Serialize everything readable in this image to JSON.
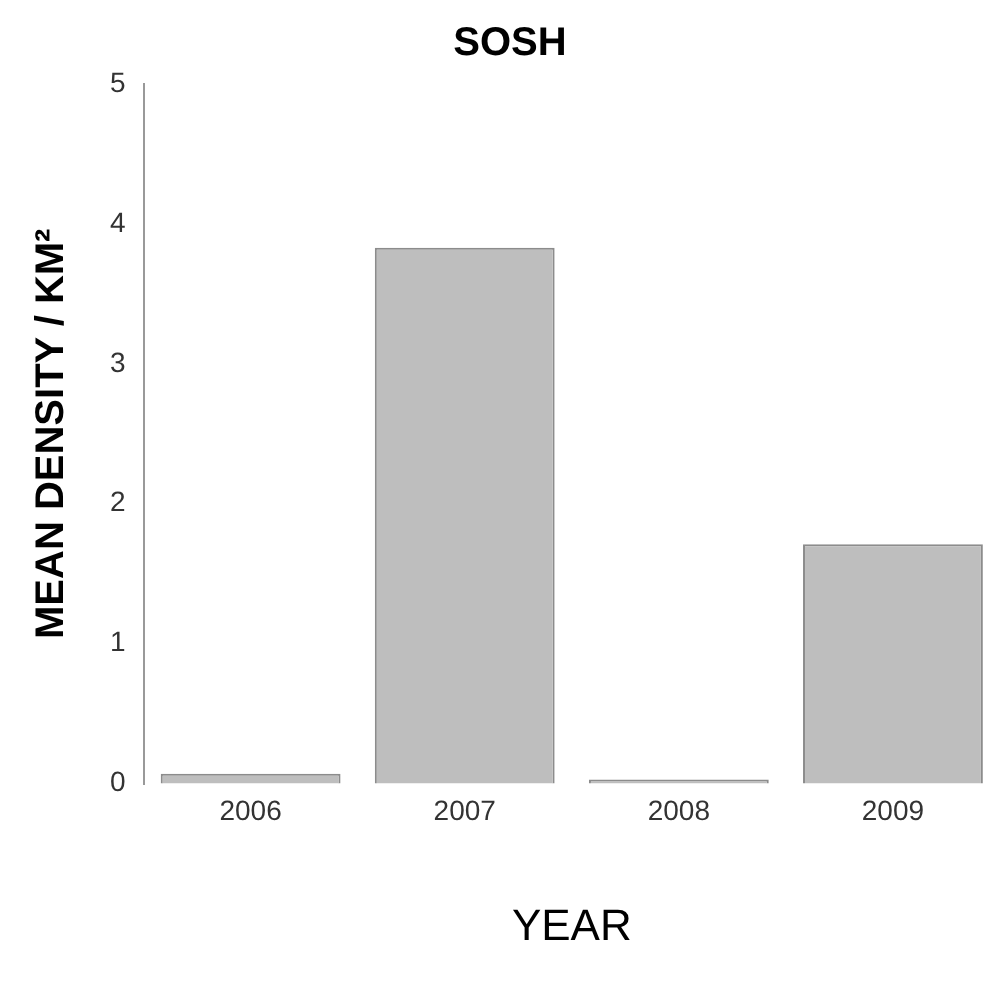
{
  "chart_data": {
    "type": "bar",
    "title": "SOSH",
    "xlabel": "YEAR",
    "ylabel": "MEAN DENSITY / KM²",
    "categories": [
      "2006",
      "2007",
      "2008",
      "2009"
    ],
    "values": [
      0.07,
      3.83,
      0.03,
      1.71
    ],
    "color": "#bebebe",
    "ylim": [
      0,
      5
    ],
    "yticks": [
      0,
      1,
      2,
      3,
      4,
      5
    ],
    "grid": false,
    "legend": false
  }
}
